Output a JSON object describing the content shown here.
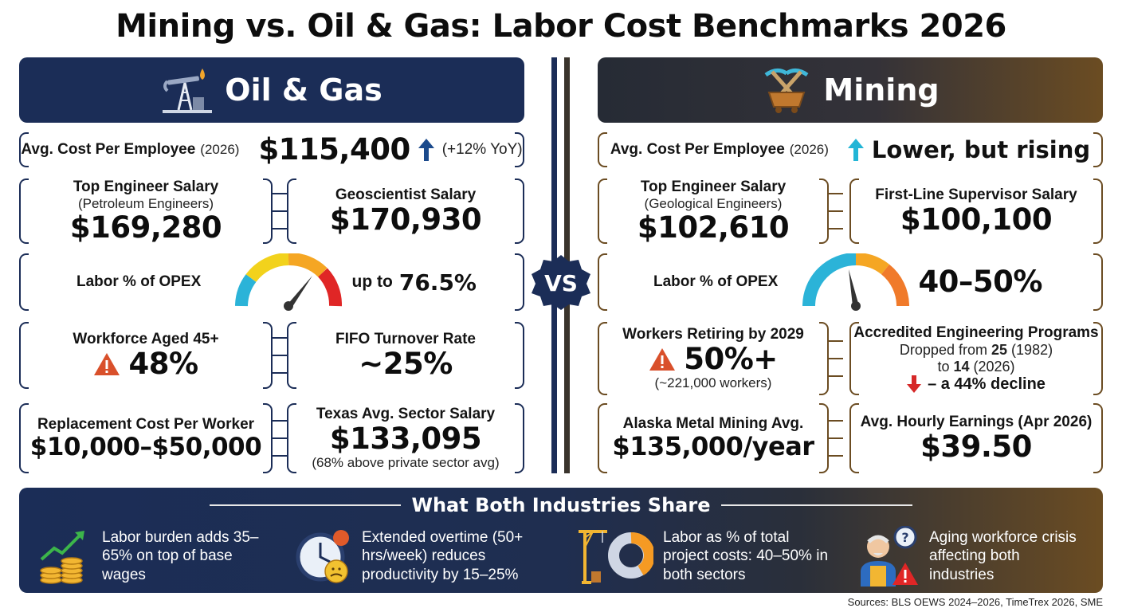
{
  "title": "Mining vs. Oil & Gas: Labor Cost Benchmarks 2026",
  "vs": "VS",
  "oil_gas": {
    "header": "Oil & Gas",
    "avg_cost": {
      "label": "Avg. Cost Per Employee",
      "year": "(2026)",
      "value": "$115,400",
      "change": "(+12% YoY)"
    },
    "top_engineer": {
      "label": "Top Engineer Salary",
      "sub": "(Petroleum Engineers)",
      "value": "$169,280"
    },
    "geoscientist": {
      "label": "Geoscientist Salary",
      "value": "$170,930"
    },
    "labor_opex": {
      "label": "Labor % of OPEX",
      "prefix": "up to",
      "value": "76.5%",
      "gauge_fraction": 0.765
    },
    "workforce_45": {
      "label": "Workforce Aged 45+",
      "value": "48%"
    },
    "fifo": {
      "label": "FIFO Turnover Rate",
      "value": "~25%"
    },
    "replacement": {
      "label": "Replacement Cost Per Worker",
      "value": "$10,000–$50,000"
    },
    "texas": {
      "label": "Texas Avg. Sector Salary",
      "value": "$133,095",
      "sub": "(68% above private sector avg)"
    }
  },
  "mining": {
    "header": "Mining",
    "avg_cost": {
      "label": "Avg. Cost Per Employee",
      "year": "(2026)",
      "value": "Lower, but rising"
    },
    "top_engineer": {
      "label": "Top Engineer Salary",
      "sub": "(Geological Engineers)",
      "value": "$102,610"
    },
    "supervisor": {
      "label": "First-Line Supervisor Salary",
      "value": "$100,100"
    },
    "labor_opex": {
      "label": "Labor % of OPEX",
      "value": "40–50%",
      "gauge_fraction": 0.45
    },
    "retiring": {
      "label": "Workers Retiring by 2029",
      "value": "50%+",
      "sub": "(~221,000 workers)"
    },
    "programs": {
      "label": "Accredited Engineering Programs",
      "line1_pre": "Dropped from",
      "line1_num": "25",
      "line1_year": "(1982)",
      "line2_pre": "to",
      "line2_num": "14",
      "line2_year": "(2026)",
      "decline": "– a 44% decline"
    },
    "alaska": {
      "label": "Alaska Metal Mining Avg.",
      "value": "$135,000/year"
    },
    "hourly": {
      "label": "Avg. Hourly Earnings (Apr 2026)",
      "value": "$39.50"
    }
  },
  "shared": {
    "title": "What Both Industries Share",
    "items": [
      {
        "text": "Labor burden adds 35–65% on top of base wages",
        "icon": "coins-growth-icon"
      },
      {
        "text": "Extended overtime (50+ hrs/week) reduces productivity by 15–25%",
        "icon": "clock-stress-icon"
      },
      {
        "text": "Labor as % of total project costs: 40–50% in both sectors",
        "icon": "crane-donut-icon"
      },
      {
        "text": "Aging workforce crisis affecting both industries",
        "icon": "elderly-worker-icon"
      }
    ]
  },
  "sources": "Sources: BLS OEWS 2024–2026, TimeTrex 2026, SME",
  "colors": {
    "navy": "#1b2d57",
    "brown": "#6b4c22",
    "dark": "#262b35",
    "warning": "#d9502b",
    "up_arrow_blue": "#1b4a8c",
    "up_arrow_cyan": "#22b5d6",
    "down_arrow_red": "#d62828"
  }
}
